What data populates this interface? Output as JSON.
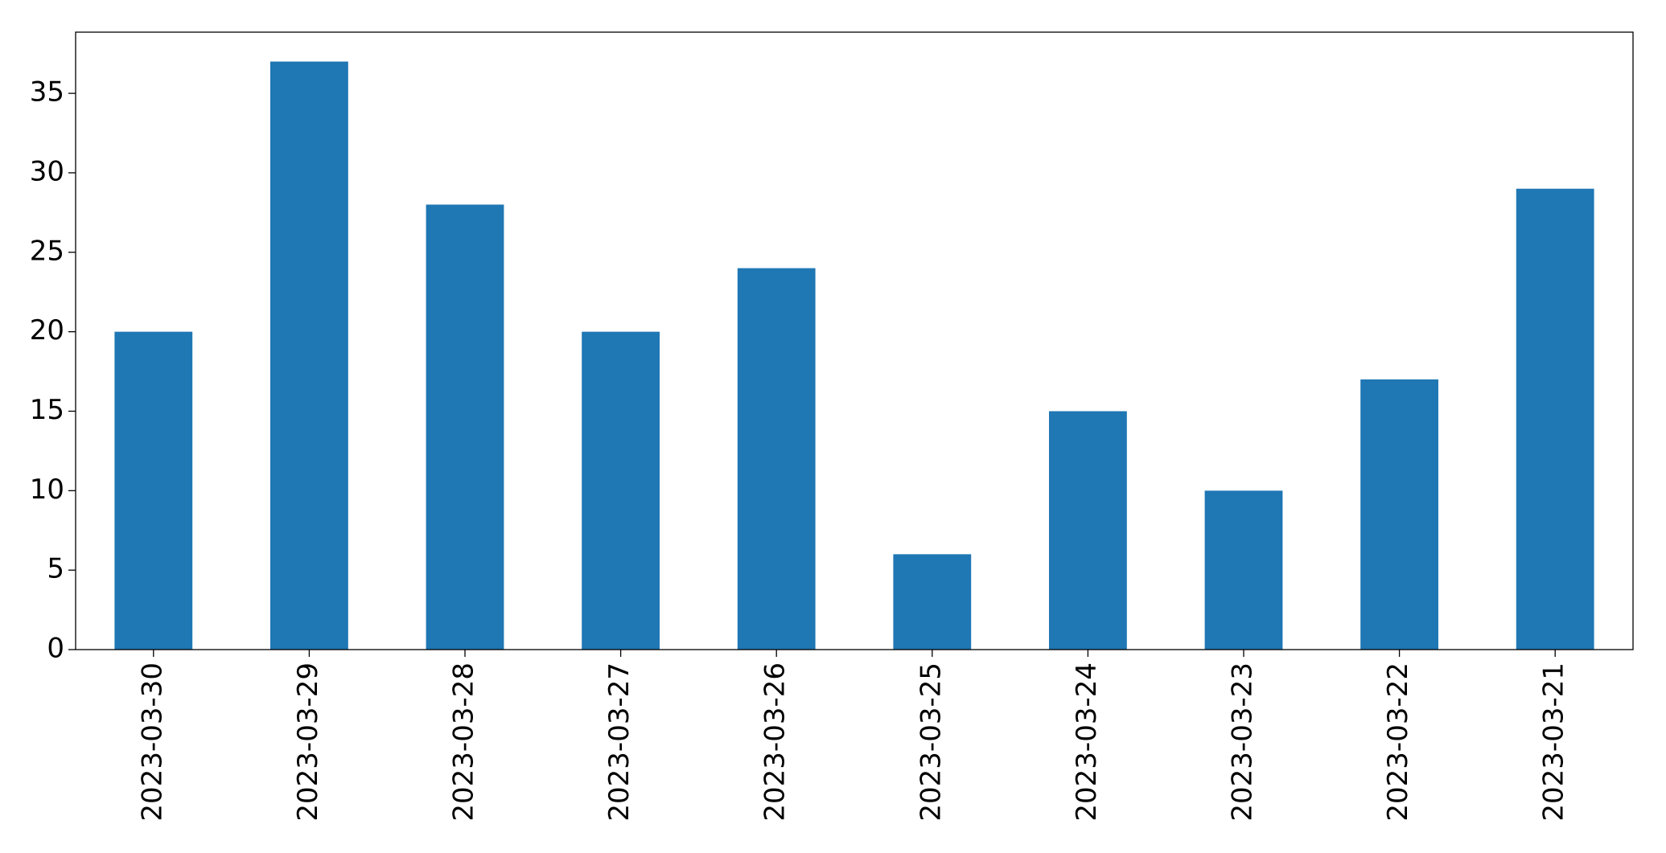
{
  "chart_data": {
    "type": "bar",
    "categories": [
      "2023-03-30",
      "2023-03-29",
      "2023-03-28",
      "2023-03-27",
      "2023-03-26",
      "2023-03-25",
      "2023-03-24",
      "2023-03-23",
      "2023-03-22",
      "2023-03-21"
    ],
    "values": [
      20,
      37,
      28,
      20,
      24,
      6,
      15,
      10,
      17,
      29
    ],
    "color": "#1f77b4",
    "ylim": [
      0,
      38.85
    ],
    "yticks": [
      0,
      5,
      10,
      15,
      20,
      25,
      30,
      35
    ],
    "grid": false
  }
}
